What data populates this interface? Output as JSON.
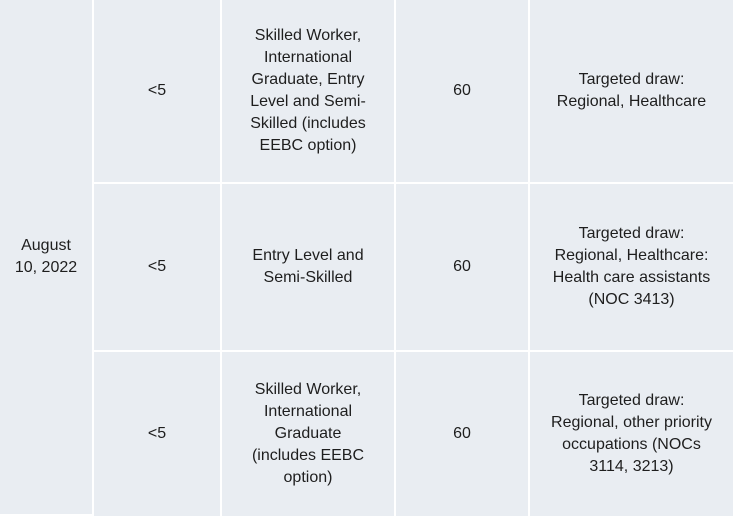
{
  "table": {
    "date": "August 10, 2022",
    "rows": [
      {
        "score": "<5",
        "stream": "Skilled Worker, International Graduate, Entry Level and Semi-Skilled (includes EEBC option)",
        "invitations": "60",
        "notes": "Targeted draw: Regional, Healthcare"
      },
      {
        "score": "<5",
        "stream": "Entry Level and Semi-Skilled",
        "invitations": "60",
        "notes": "Targeted draw: Regional, Healthcare: Health care assistants (NOC 3413)"
      },
      {
        "score": "<5",
        "stream": "Skilled Worker, International Graduate (includes EEBC option)",
        "invitations": "60",
        "notes": "Targeted draw: Regional, other priority occupations (NOCs 3114, 3213)"
      }
    ]
  }
}
